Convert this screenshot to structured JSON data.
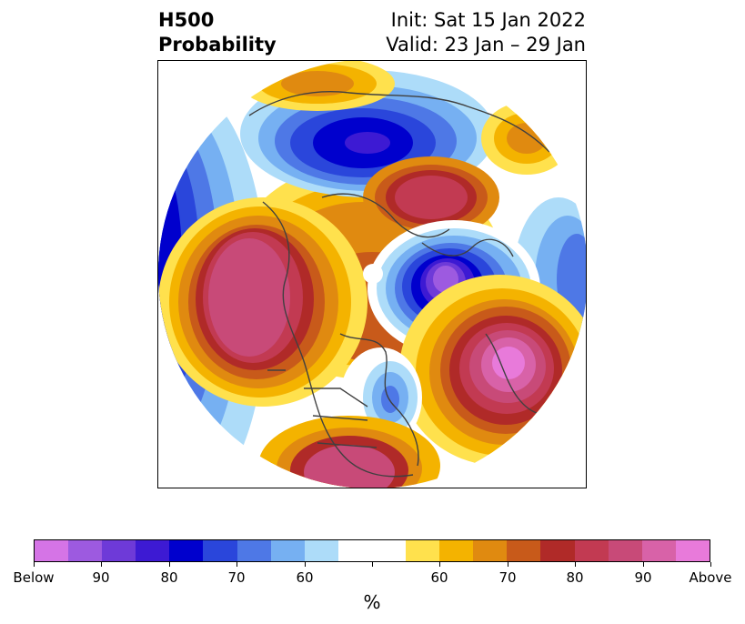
{
  "title": {
    "left_line1": "H500",
    "left_line2": "Probability",
    "right_line1": "Init: Sat 15 Jan 2022",
    "right_line2": "Valid: 23 Jan – 29 Jan"
  },
  "colorbar": {
    "unit": "%",
    "colors": [
      "#d574e6",
      "#9d5ae0",
      "#6e3ad8",
      "#3d1ad3",
      "#0000cd",
      "#2a46db",
      "#4e78e6",
      "#76b0f2",
      "#addcf9",
      "#ffffff",
      "#ffffff",
      "#ffe14d",
      "#f4b300",
      "#e08a10",
      "#c85a1a",
      "#b02a28",
      "#c23a52",
      "#c84a78",
      "#d862a8",
      "#e87ada"
    ],
    "tick_labels": [
      "Below",
      "90",
      "80",
      "70",
      "60",
      "",
      "60",
      "70",
      "80",
      "90",
      "Above"
    ]
  }
}
